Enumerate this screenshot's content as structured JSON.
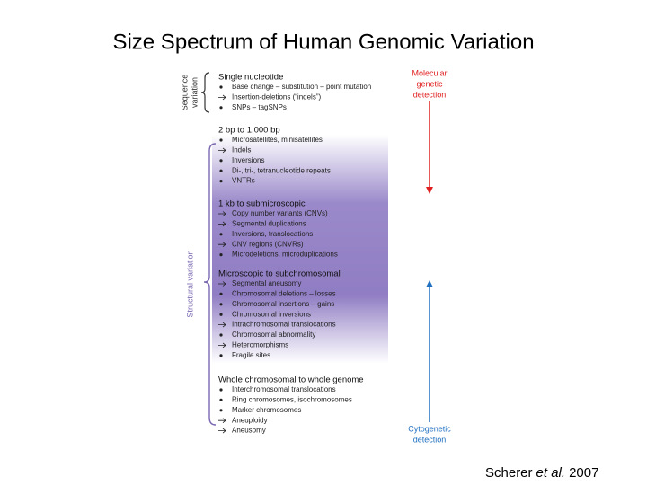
{
  "title": "Size Spectrum of Human Genomic Variation",
  "sections": [
    {
      "heading": "Single nucleotide",
      "items": [
        {
          "marker": "bullet",
          "text": "Base change – substitution – point mutation"
        },
        {
          "marker": "arrow",
          "text": "Insertion-deletions (“indels”)"
        },
        {
          "marker": "bullet",
          "text": "SNPs – tagSNPs"
        }
      ]
    },
    {
      "heading": "2 bp to 1,000 bp",
      "items": [
        {
          "marker": "bullet",
          "text": "Microsatellites, minisatellites"
        },
        {
          "marker": "arrow",
          "text": "Indels"
        },
        {
          "marker": "bullet",
          "text": "Inversions"
        },
        {
          "marker": "bullet",
          "text": "Di-, tri-, tetranucleotide repeats"
        },
        {
          "marker": "bullet",
          "text": "VNTRs"
        }
      ]
    },
    {
      "heading": "1 kb to submicroscopic",
      "items": [
        {
          "marker": "arrow",
          "text": "Copy number variants (CNVs)"
        },
        {
          "marker": "arrow",
          "text": "Segmental duplications"
        },
        {
          "marker": "bullet",
          "text": "Inversions, translocations"
        },
        {
          "marker": "arrow",
          "text": "CNV regions (CNVRs)"
        },
        {
          "marker": "bullet",
          "text": "Microdeletions, microduplications"
        }
      ]
    },
    {
      "heading": "Microscopic to subchromosomal",
      "items": [
        {
          "marker": "arrow",
          "text": "Segmental aneusomy"
        },
        {
          "marker": "bullet",
          "text": "Chromosomal deletions – losses"
        },
        {
          "marker": "bullet",
          "text": "Chromosomal insertions – gains"
        },
        {
          "marker": "bullet",
          "text": "Chromosomal inversions"
        },
        {
          "marker": "arrow",
          "text": "Intrachromosomal translocations"
        },
        {
          "marker": "bullet",
          "text": "Chromosomal abnormality"
        },
        {
          "marker": "arrow",
          "text": "Heteromorphisms"
        },
        {
          "marker": "bullet",
          "text": "Fragile sites"
        }
      ]
    },
    {
      "heading": "Whole chromosomal to whole genome",
      "items": [
        {
          "marker": "bullet",
          "text": "Interchromosomal translocations"
        },
        {
          "marker": "bullet",
          "text": "Ring chromosomes, isochromosomes"
        },
        {
          "marker": "bullet",
          "text": "Marker chromosomes"
        },
        {
          "marker": "arrow",
          "text": "Aneuploidy"
        },
        {
          "marker": "arrow",
          "text": "Aneusomy"
        }
      ]
    }
  ],
  "side_labels": {
    "sequence": [
      "Sequence",
      "variation"
    ],
    "structural": "Structural variation",
    "molecular": [
      "Molecular",
      "genetic",
      "detection"
    ],
    "cytogenetic": [
      "Cytogenetic",
      "detection"
    ]
  },
  "citation": {
    "author": "Scherer",
    "etal": "et al.",
    "year": "2007"
  }
}
